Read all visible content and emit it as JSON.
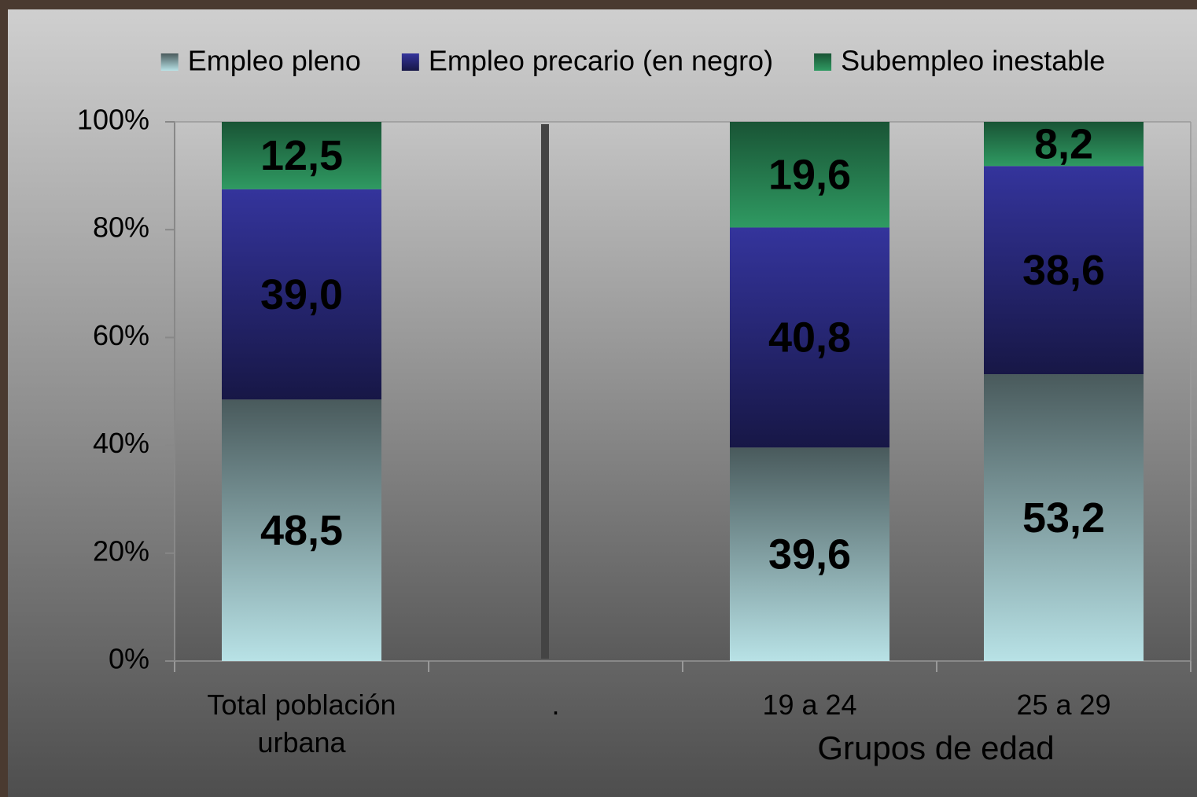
{
  "chart_data": {
    "type": "stacked_bar",
    "categories": [
      "Total población urbana",
      ".",
      "19 a 24",
      "25 a 29"
    ],
    "x_label": "Grupos de edad",
    "series": [
      {
        "name": "Empleo pleno",
        "color": "#b8e2e6",
        "values": [
          48.5,
          null,
          39.6,
          53.2
        ],
        "value_labels": [
          "48,5",
          null,
          "39,6",
          "53,2"
        ]
      },
      {
        "name": "Empleo precario (en negro)",
        "color": "#34349c",
        "values": [
          39.0,
          null,
          40.8,
          38.6
        ],
        "value_labels": [
          "39,0",
          null,
          "40,8",
          "38,6"
        ]
      },
      {
        "name": "Subempleo inestable",
        "color": "#2f9a62",
        "values": [
          12.5,
          null,
          19.6,
          8.2
        ],
        "value_labels": [
          "12,5",
          null,
          "19,6",
          "8,2"
        ]
      }
    ],
    "ylim": [
      0,
      100
    ],
    "yticks": [
      {
        "value": 0,
        "label": "0%"
      },
      {
        "value": 20,
        "label": "20%"
      },
      {
        "value": 40,
        "label": "40%"
      },
      {
        "value": 60,
        "label": "60%"
      },
      {
        "value": 80,
        "label": "80%"
      },
      {
        "value": 100,
        "label": "100%"
      }
    ]
  }
}
